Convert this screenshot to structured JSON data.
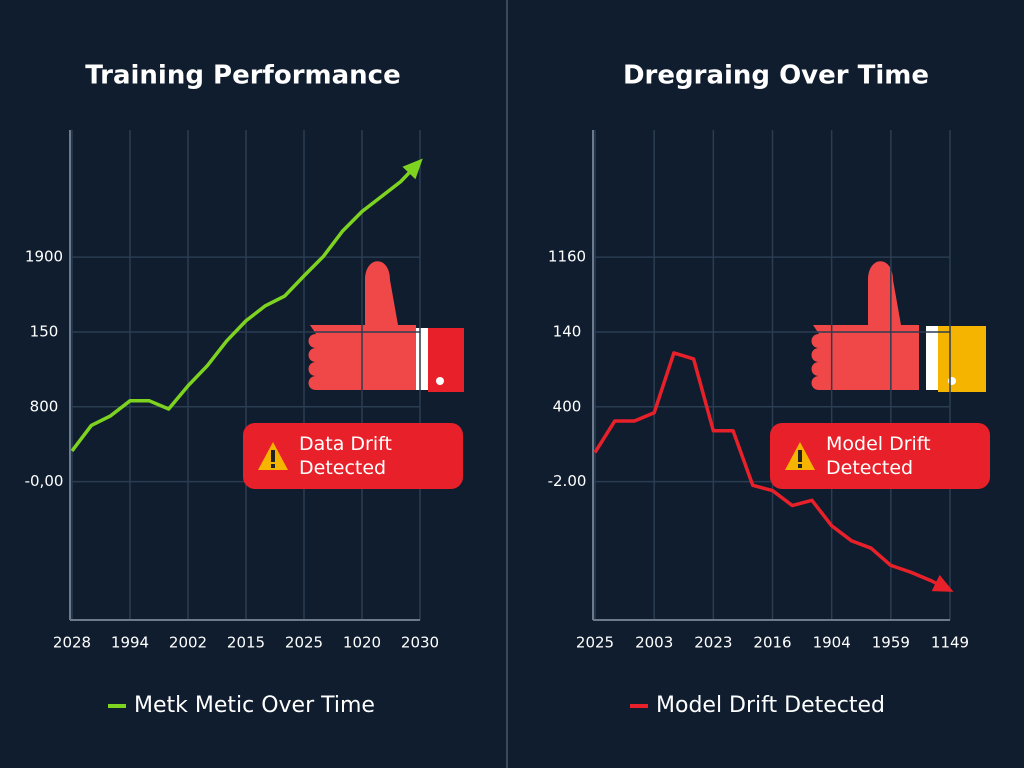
{
  "chart_data": [
    {
      "type": "line",
      "title": "Training Performance",
      "categories": [
        "2028",
        null,
        null,
        "1994",
        null,
        null,
        "2002",
        null,
        null,
        "2015",
        null,
        null,
        "2025",
        null,
        null,
        "1020",
        null,
        null,
        "2030"
      ],
      "series": [
        {
          "name": "Metk Metic Over Time",
          "color": "#7ed321",
          "values": [
            0.41,
            0.75,
            0.88,
            1.08,
            1.08,
            0.97,
            1.28,
            1.55,
            1.88,
            2.15,
            2.35,
            2.48,
            2.75,
            3.01,
            3.35,
            3.61,
            3.81,
            4.01,
            4.28
          ]
        }
      ],
      "ylim": [
        -1.85,
        4.7
      ],
      "yticks": [
        {
          "value": 0,
          "label": "-0,00"
        },
        {
          "value": 1,
          "label": "800"
        },
        {
          "value": 2,
          "label": "150"
        },
        {
          "value": 3,
          "label": "1900"
        }
      ],
      "annotation": "Data Drift Detected",
      "grid": true
    },
    {
      "type": "line",
      "title": "Dregraing Over Time",
      "categories": [
        "2025",
        null,
        null,
        "2003",
        null,
        null,
        "2023",
        null,
        null,
        "2016",
        null,
        null,
        "1904",
        null,
        null,
        "1959",
        null,
        null,
        "1149"
      ],
      "series": [
        {
          "name": "Model Drift Detected",
          "color": "#e8202a",
          "values": [
            0.39,
            0.81,
            0.81,
            0.92,
            1.72,
            1.64,
            0.68,
            0.68,
            -0.05,
            -0.12,
            -0.32,
            -0.25,
            -0.59,
            -0.79,
            -0.89,
            -1.12,
            -1.21,
            -1.32,
            -1.45
          ]
        }
      ],
      "ylim": [
        -1.85,
        4.7
      ],
      "yticks": [
        {
          "value": 0,
          "label": "-2.00"
        },
        {
          "value": 1,
          "label": "400"
        },
        {
          "value": 2,
          "label": "140"
        },
        {
          "value": 3,
          "label": "1160"
        }
      ],
      "annotation": "Model Drift Detected",
      "grid": true
    }
  ]
}
